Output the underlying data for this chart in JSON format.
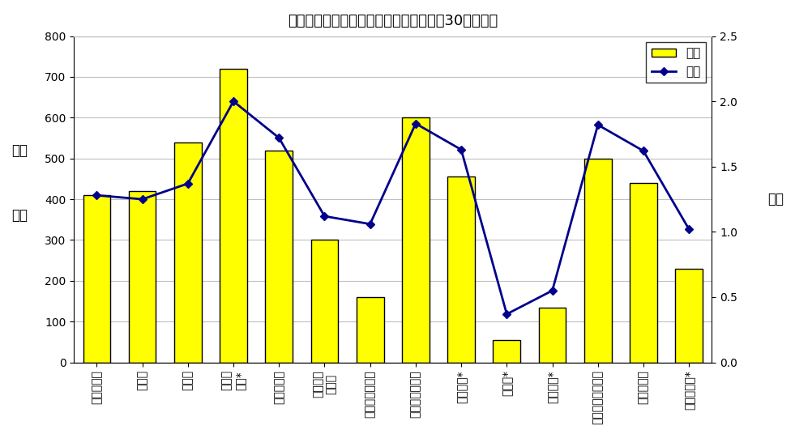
{
  "title": "産業別年末賞与の支給状況（事業所規模30人以上）",
  "categories": [
    "調査産業計",
    "建設業",
    "製造業",
    "電気・\nガス*",
    "情報通信業",
    "運輸業，\n郵便業",
    "卸売業，小売業",
    "金融業，保険業",
    "学術研究*",
    "宿泊業*",
    "生活関連*",
    "教育，学習支援業",
    "医療，福祉",
    "サービス業*"
  ],
  "bar_values": [
    410,
    420,
    540,
    720,
    520,
    300,
    160,
    600,
    455,
    55,
    135,
    500,
    440,
    230
  ],
  "line_values": [
    1.28,
    1.25,
    1.37,
    2.0,
    1.72,
    1.12,
    1.06,
    1.83,
    1.63,
    0.37,
    0.55,
    1.82,
    1.62,
    1.02
  ],
  "bar_color": "#FFFF00",
  "bar_edgecolor": "#000000",
  "line_color": "#00008B",
  "marker_color": "#00008B",
  "ylabel_left_line1": "金額",
  "ylabel_left_line2": "千円",
  "ylabel_right": "月数",
  "ylim_left": [
    0,
    800
  ],
  "ylim_right": [
    0,
    2.5
  ],
  "yticks_left": [
    0,
    100,
    200,
    300,
    400,
    500,
    600,
    700,
    800
  ],
  "yticks_right": [
    0.0,
    0.5,
    1.0,
    1.5,
    2.0,
    2.5
  ],
  "legend_label_bar": "金額",
  "legend_label_line": "月数",
  "background_color": "#FFFFFF",
  "grid_color": "#C0C0C0",
  "title_fontsize": 13,
  "tick_fontsize": 10,
  "label_fontsize": 12
}
